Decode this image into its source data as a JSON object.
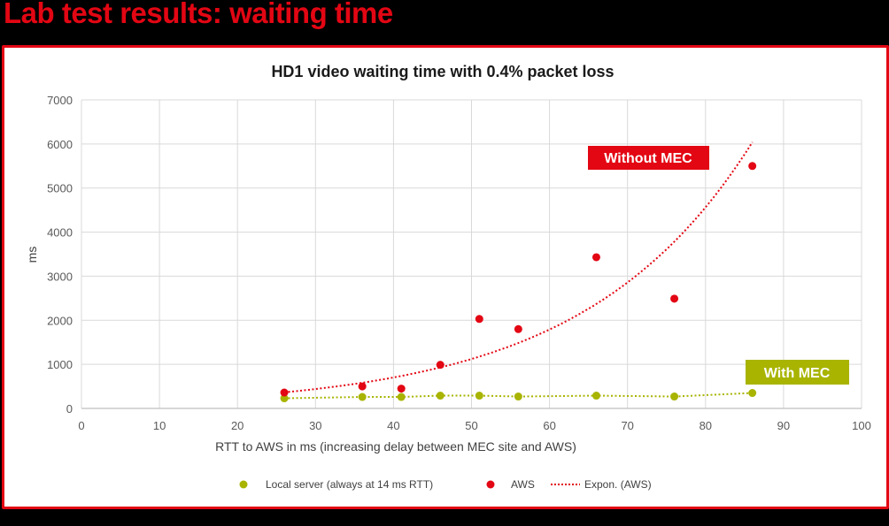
{
  "slide": {
    "title": "Lab test results: waiting time",
    "title_color": "#e30613",
    "frame_color": "#e30613"
  },
  "chart_data": {
    "type": "scatter",
    "title": "HD1 video waiting time with 0.4% packet loss",
    "xlabel": "RTT to AWS in ms (increasing delay between MEC site and AWS)",
    "ylabel": "ms",
    "xlim": [
      0,
      100
    ],
    "ylim": [
      0,
      7000
    ],
    "x_ticks": [
      "0",
      "10",
      "20",
      "30",
      "40",
      "50",
      "60",
      "70",
      "80",
      "90",
      "100"
    ],
    "y_ticks": [
      "0",
      "1000",
      "2000",
      "3000",
      "4000",
      "5000",
      "6000",
      "7000"
    ],
    "grid": true,
    "legend_position": "bottom",
    "series": [
      {
        "name": "Local server (always at 14 ms RTT)",
        "color": "#a8b400",
        "x": [
          26,
          36,
          41,
          46,
          51,
          56,
          66,
          76,
          86
        ],
        "values": [
          230,
          260,
          260,
          290,
          290,
          270,
          290,
          270,
          350
        ]
      },
      {
        "name": "AWS",
        "color": "#e30613",
        "x": [
          26,
          36,
          41,
          46,
          51,
          56,
          66,
          76,
          86
        ],
        "values": [
          360,
          500,
          450,
          990,
          2030,
          1800,
          3430,
          2490,
          5500
        ]
      },
      {
        "name": "Expon. (AWS)",
        "color": "#e30613",
        "style": "dotted",
        "x": [
          26,
          86
        ],
        "values": [
          360,
          6050
        ]
      }
    ],
    "annotations": [
      {
        "text": "Without MEC",
        "color": "#e30613"
      },
      {
        "text": "With MEC",
        "color": "#a8b400"
      }
    ]
  }
}
